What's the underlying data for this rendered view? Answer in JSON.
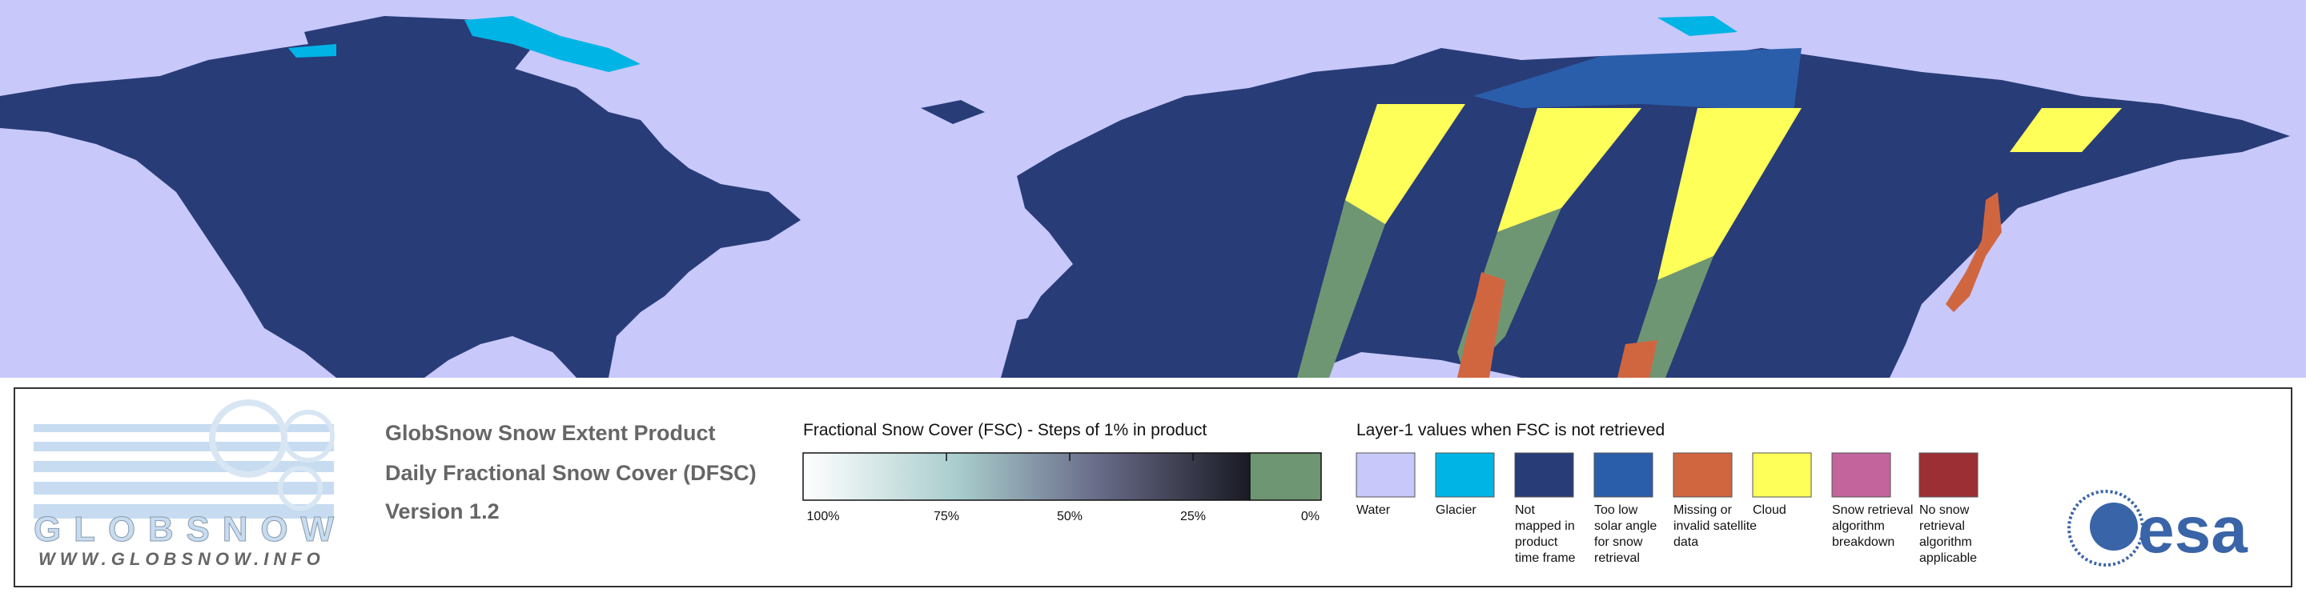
{
  "logo": {
    "name": "GLOBSNOW",
    "url": "WWW.GLOBSNOW.INFO"
  },
  "product": {
    "lines": [
      "GlobSnow Snow Extent Product",
      "Daily Fractional Snow Cover (DFSC)",
      "Version 1.2"
    ]
  },
  "fsc_legend": {
    "title": "Fractional Snow Cover (FSC) - Steps of 1% in product",
    "ticks": [
      "100%",
      "75%",
      "50%",
      "25%",
      "0%"
    ]
  },
  "layer1_legend": {
    "title": "Layer-1 values when FSC is not retrieved",
    "items": [
      {
        "lines": [
          "Water"
        ],
        "color": "#c8c8fa"
      },
      {
        "lines": [
          "Glacier"
        ],
        "color": "#00b4e6"
      },
      {
        "lines": [
          "Not",
          "mapped in",
          "product",
          "time frame"
        ],
        "color": "#283c78"
      },
      {
        "lines": [
          "Too low",
          "solar angle",
          "for snow",
          "retrieval"
        ],
        "color": "#2a5eaa"
      },
      {
        "lines": [
          "Missing or",
          "invalid satellite",
          "data"
        ],
        "color": "#d06640"
      },
      {
        "lines": [
          "Cloud"
        ],
        "color": "#ffff5a"
      },
      {
        "lines": [
          "Snow retrieval",
          "algorithm",
          "breakdown"
        ],
        "color": "#c4649c"
      },
      {
        "lines": [
          "No snow",
          "retrieval",
          "algorithm",
          "applicable"
        ],
        "color": "#9c2f34"
      }
    ]
  },
  "agency": {
    "name": "esa"
  }
}
